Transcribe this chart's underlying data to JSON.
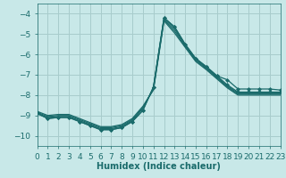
{
  "xlabel": "Humidex (Indice chaleur)",
  "xlim": [
    0,
    23
  ],
  "ylim": [
    -10.5,
    -3.5
  ],
  "yticks": [
    -10,
    -9,
    -8,
    -7,
    -6,
    -5,
    -4
  ],
  "xticks": [
    0,
    1,
    2,
    3,
    4,
    5,
    6,
    7,
    8,
    9,
    10,
    11,
    12,
    13,
    14,
    15,
    16,
    17,
    18,
    19,
    20,
    21,
    22,
    23
  ],
  "bg_color": "#c8e8e8",
  "grid_color": "#a8cccc",
  "line_color": "#1a6b6b",
  "lines": [
    {
      "y": [
        -8.9,
        -9.15,
        -9.1,
        -9.1,
        -9.3,
        -9.5,
        -9.7,
        -9.7,
        -9.6,
        -9.3,
        -8.75,
        -7.6,
        -4.2,
        -4.65,
        -5.5,
        -6.2,
        -6.6,
        -7.05,
        -7.25,
        -7.7,
        -7.7,
        -7.7,
        -7.7,
        -7.75
      ],
      "marker": true
    },
    {
      "y": [
        -8.9,
        -9.15,
        -9.1,
        -9.1,
        -9.3,
        -9.5,
        -9.7,
        -9.7,
        -9.6,
        -9.3,
        -8.75,
        -7.6,
        -4.2,
        -4.65,
        -5.5,
        -6.2,
        -6.6,
        -7.05,
        -7.5,
        -7.85,
        -7.85,
        -7.85,
        -7.85,
        -7.85
      ],
      "marker": true
    },
    {
      "y": [
        -8.9,
        -9.1,
        -9.05,
        -9.05,
        -9.25,
        -9.45,
        -9.65,
        -9.65,
        -9.55,
        -9.25,
        -8.65,
        -7.65,
        -4.25,
        -4.75,
        -5.55,
        -6.25,
        -6.65,
        -7.1,
        -7.55,
        -7.9,
        -7.9,
        -7.9,
        -7.9,
        -7.9
      ],
      "marker": false
    },
    {
      "y": [
        -8.85,
        -9.05,
        -9.0,
        -9.0,
        -9.2,
        -9.4,
        -9.6,
        -9.6,
        -9.5,
        -9.2,
        -8.6,
        -7.7,
        -4.3,
        -4.85,
        -5.6,
        -6.3,
        -6.7,
        -7.15,
        -7.6,
        -7.95,
        -7.95,
        -7.95,
        -7.95,
        -7.95
      ],
      "marker": false
    },
    {
      "y": [
        -8.8,
        -9.0,
        -8.95,
        -8.95,
        -9.15,
        -9.35,
        -9.55,
        -9.55,
        -9.45,
        -9.15,
        -8.55,
        -7.75,
        -4.35,
        -4.95,
        -5.65,
        -6.35,
        -6.75,
        -7.2,
        -7.65,
        -8.0,
        -8.0,
        -8.0,
        -8.0,
        -8.0
      ],
      "marker": false
    }
  ],
  "marker_style": "D",
  "marker_size": 2.0,
  "linewidth": 0.9,
  "label_fontsize": 7,
  "tick_fontsize": 6.5
}
